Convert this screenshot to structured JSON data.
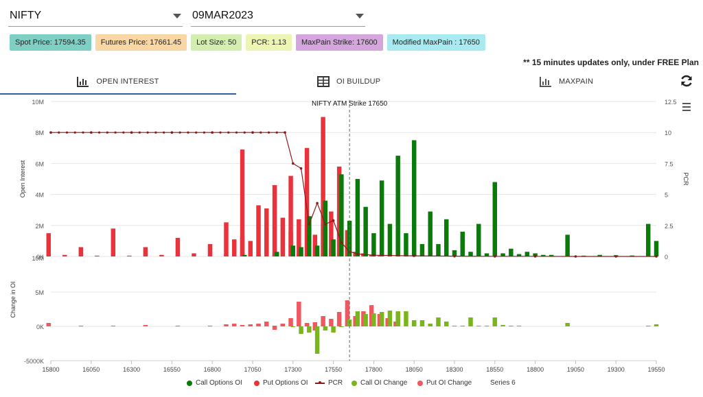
{
  "header": {
    "symbol_select": "NIFTY",
    "expiry_select": "09MAR2023"
  },
  "badges": [
    {
      "label": "Spot Price: 17594.35",
      "color": "#7fcfc4"
    },
    {
      "label": "Futures Price: 17661.45",
      "color": "#f8d7a5"
    },
    {
      "label": "Lot Size: 50",
      "color": "#d4edb0"
    },
    {
      "label": "PCR: 1.13",
      "color": "#eef5b4"
    },
    {
      "label": "MaxPain Strike: 17600",
      "color": "#d4a6dd"
    },
    {
      "label": "Modified MaxPain : 17650",
      "color": "#a8eaf0"
    }
  ],
  "note": "** 15 minutes updates only, under FREE Plan",
  "tabs": [
    {
      "label": "OPEN INTEREST",
      "icon": "bar-chart-icon",
      "active": true
    },
    {
      "label": "OI BUILDUP",
      "icon": "table-icon",
      "active": false
    },
    {
      "label": "MAXPAIN",
      "icon": "bar-chart-icon",
      "active": false
    }
  ],
  "colors": {
    "call_oi": "#0b7a0b",
    "put_oi": "#e8333c",
    "pcr": "#8b1a1a",
    "call_change": "#7ab51d",
    "put_change": "#f0575f",
    "tab_underline": "#2a5fa7"
  },
  "chart_data": {
    "type": "bar",
    "annotation": "NIFTY ATM Strike 17650",
    "atm_strike": 17650,
    "x_tick_labels": [
      "15800",
      "16050",
      "16300",
      "16550",
      "16800",
      "17050",
      "17300",
      "17550",
      "17800",
      "18050",
      "18300",
      "18550",
      "18800",
      "19050",
      "19300",
      "19550"
    ],
    "upper": {
      "ylabel": "Open Interest",
      "ylim": [
        0,
        10000000
      ],
      "y_ticks": [
        "0K",
        "2M",
        "4M",
        "6M",
        "8M",
        "10M"
      ],
      "y2label": "PCR",
      "y2lim": [
        0,
        12.5
      ],
      "y2_ticks": [
        "0",
        "2.5",
        "5",
        "7.5",
        "10",
        "12.5"
      ]
    },
    "lower": {
      "ylabel": "Change in OI",
      "y_ticks": [
        "-5000K",
        "0K",
        "5M",
        "10M"
      ],
      "ylim": [
        -5000000,
        10000000
      ]
    },
    "series": [
      {
        "name": "Call Options OI",
        "points": [
          [
            17000,
            100000
          ],
          [
            17200,
            300000
          ],
          [
            17300,
            700000
          ],
          [
            17350,
            600000
          ],
          [
            17400,
            2600000
          ],
          [
            17450,
            700000
          ],
          [
            17500,
            3600000
          ],
          [
            17550,
            1100000
          ],
          [
            17600,
            5300000
          ],
          [
            17650,
            2300000
          ],
          [
            17700,
            5000000
          ],
          [
            17750,
            3200000
          ],
          [
            17800,
            1500000
          ],
          [
            17850,
            4900000
          ],
          [
            17900,
            2100000
          ],
          [
            17950,
            6500000
          ],
          [
            18000,
            1500000
          ],
          [
            18050,
            7500000
          ],
          [
            18100,
            800000
          ],
          [
            18150,
            2900000
          ],
          [
            18200,
            800000
          ],
          [
            18250,
            2400000
          ],
          [
            18300,
            400000
          ],
          [
            18350,
            1600000
          ],
          [
            18400,
            300000
          ],
          [
            18450,
            2100000
          ],
          [
            18500,
            200000
          ],
          [
            18550,
            4800000
          ],
          [
            18600,
            200000
          ],
          [
            18650,
            500000
          ],
          [
            18700,
            150000
          ],
          [
            18750,
            300000
          ],
          [
            18800,
            200000
          ],
          [
            18850,
            100000
          ],
          [
            18900,
            100000
          ],
          [
            19000,
            1400000
          ],
          [
            19100,
            50000
          ],
          [
            19200,
            100000
          ],
          [
            19300,
            80000
          ],
          [
            19400,
            60000
          ],
          [
            19500,
            2100000
          ],
          [
            19550,
            1000000
          ]
        ]
      },
      {
        "name": "Put Options OI",
        "points": [
          [
            15800,
            1500000
          ],
          [
            15900,
            100000
          ],
          [
            16000,
            600000
          ],
          [
            16100,
            50000
          ],
          [
            16200,
            1800000
          ],
          [
            16300,
            50000
          ],
          [
            16400,
            600000
          ],
          [
            16500,
            100000
          ],
          [
            16600,
            1200000
          ],
          [
            16700,
            200000
          ],
          [
            16800,
            800000
          ],
          [
            16900,
            100000
          ],
          [
            17000,
            1300000
          ],
          [
            17100,
            100000
          ],
          [
            17150,
            3100000
          ],
          [
            17200,
            200000
          ],
          [
            17300,
            1600000
          ],
          [
            17350,
            300000
          ],
          [
            17400,
            2000000
          ],
          [
            17450,
            800000
          ],
          [
            17500,
            2100000
          ],
          [
            17550,
            500000
          ],
          [
            17600,
            2700000
          ],
          [
            17650,
            800000
          ],
          [
            16900,
            2200000
          ],
          [
            16950,
            1100000
          ],
          [
            17000,
            6900000
          ],
          [
            17050,
            1000000
          ],
          [
            17100,
            3300000
          ],
          [
            17150,
            2200000
          ],
          [
            17200,
            4600000
          ],
          [
            17250,
            2500000
          ],
          [
            17300,
            5200000
          ],
          [
            17350,
            2400000
          ],
          [
            17400,
            7000000
          ],
          [
            17450,
            1400000
          ],
          [
            17500,
            9000000
          ],
          [
            17550,
            2900000
          ],
          [
            17600,
            5800000
          ],
          [
            17650,
            1700000
          ],
          [
            17700,
            300000
          ],
          [
            17750,
            200000
          ],
          [
            17800,
            100000
          ],
          [
            17850,
            50000
          ]
        ]
      },
      {
        "name": "PCR",
        "points": [
          [
            15800,
            10
          ],
          [
            16050,
            10
          ],
          [
            16300,
            10
          ],
          [
            16550,
            10
          ],
          [
            16800,
            10
          ],
          [
            17050,
            10
          ],
          [
            17250,
            10
          ],
          [
            17300,
            7.5
          ],
          [
            17350,
            7.1
          ],
          [
            17400,
            2.6
          ],
          [
            17450,
            4.3
          ],
          [
            17500,
            2.6
          ],
          [
            17550,
            2.9
          ],
          [
            17600,
            1.1
          ],
          [
            17650,
            0.4
          ],
          [
            17700,
            0.2
          ],
          [
            17800,
            0.1
          ],
          [
            18050,
            0.05
          ],
          [
            18300,
            0.02
          ],
          [
            18550,
            0.01
          ],
          [
            18800,
            0.01
          ],
          [
            19050,
            0.0
          ],
          [
            19300,
            0.0
          ],
          [
            19550,
            0.0
          ]
        ]
      },
      {
        "name": "Call OI Change",
        "points": [
          [
            17300,
            -100000
          ],
          [
            17350,
            -1100000
          ],
          [
            17400,
            -900000
          ],
          [
            17450,
            -4000000
          ],
          [
            17500,
            -600000
          ],
          [
            17550,
            -900000
          ],
          [
            17600,
            -100000
          ],
          [
            17650,
            1000000
          ],
          [
            17700,
            2200000
          ],
          [
            17750,
            1800000
          ],
          [
            17800,
            1900000
          ],
          [
            17850,
            2100000
          ],
          [
            17900,
            2300000
          ],
          [
            17950,
            2200000
          ],
          [
            18000,
            2200000
          ],
          [
            18050,
            900000
          ],
          [
            18100,
            900000
          ],
          [
            18150,
            400000
          ],
          [
            18200,
            1300000
          ],
          [
            18250,
            700000
          ],
          [
            18300,
            100000
          ],
          [
            18350,
            100000
          ],
          [
            18400,
            1300000
          ],
          [
            18450,
            100000
          ],
          [
            18500,
            100000
          ],
          [
            18550,
            1300000
          ],
          [
            18600,
            200000
          ],
          [
            18650,
            100000
          ],
          [
            18700,
            100000
          ],
          [
            19000,
            500000
          ],
          [
            19500,
            100000
          ],
          [
            19550,
            300000
          ]
        ]
      },
      {
        "name": "Put OI Change",
        "points": [
          [
            15800,
            500000
          ],
          [
            16000,
            100000
          ],
          [
            16200,
            100000
          ],
          [
            16400,
            200000
          ],
          [
            16600,
            100000
          ],
          [
            16800,
            100000
          ],
          [
            16900,
            300000
          ],
          [
            17000,
            100000
          ],
          [
            17100,
            200000
          ],
          [
            17150,
            700000
          ],
          [
            17200,
            100000
          ],
          [
            17250,
            400000
          ],
          [
            17300,
            100000
          ],
          [
            17350,
            300000
          ],
          [
            17400,
            500000
          ],
          [
            17450,
            -600000
          ],
          [
            16950,
            400000
          ],
          [
            17000,
            200000
          ],
          [
            17050,
            300000
          ],
          [
            17100,
            400000
          ],
          [
            17150,
            500000
          ],
          [
            17200,
            -500000
          ],
          [
            17250,
            400000
          ],
          [
            17300,
            1200000
          ],
          [
            17350,
            3600000
          ],
          [
            17400,
            400000
          ],
          [
            17450,
            600000
          ],
          [
            17500,
            1500000
          ],
          [
            17550,
            1100000
          ],
          [
            17600,
            2100000
          ],
          [
            17650,
            3800000
          ],
          [
            17700,
            1500000
          ],
          [
            17750,
            2200000
          ],
          [
            17800,
            3100000
          ],
          [
            17850,
            1800000
          ],
          [
            17900,
            1200000
          ],
          [
            17950,
            700000
          ]
        ]
      },
      {
        "name": "Series 6",
        "points": []
      }
    ]
  },
  "legend": [
    {
      "label": "Call Options OI",
      "marker": "dot",
      "color": "#0b7a0b"
    },
    {
      "label": "Put Options OI",
      "marker": "dot",
      "color": "#e8333c"
    },
    {
      "label": "PCR",
      "marker": "line",
      "color": "#8b1a1a"
    },
    {
      "label": "Call OI Change",
      "marker": "dot",
      "color": "#7ab51d"
    },
    {
      "label": "Put OI Change",
      "marker": "dot",
      "color": "#f0575f"
    },
    {
      "label": "Series 6",
      "marker": "none",
      "color": ""
    }
  ]
}
